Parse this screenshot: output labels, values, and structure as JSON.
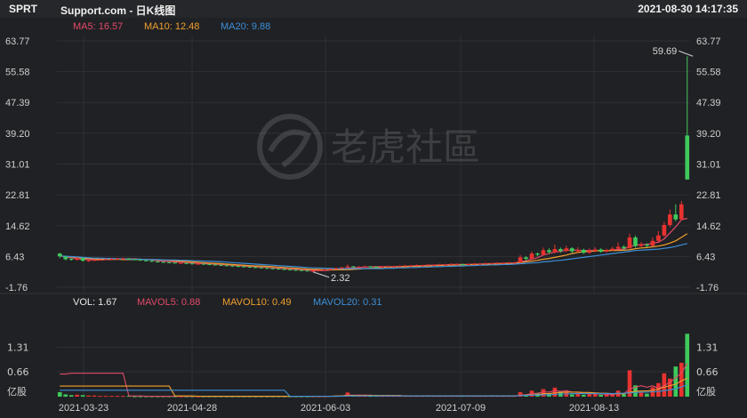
{
  "header": {
    "ticker": "SPRT",
    "title": "Support.com - 日K线图",
    "datetime": "2021-08-30 14:17:35"
  },
  "legend": {
    "ma5": "MA5: 16.57",
    "ma10": "MA10: 12.48",
    "ma20": "MA20: 9.88",
    "vol": "VOL: 1.67",
    "mavol5": "MAVOL5: 0.88",
    "mavol10": "MAVOL10: 0.49",
    "mavol20": "MAVOL20: 0.31"
  },
  "watermark": "老虎社區",
  "colors": {
    "up": "#e8322f",
    "down": "#3ec95c",
    "ma5": "#e04a6a",
    "ma10": "#f0a030",
    "ma20": "#3c8fd8",
    "background": "#202124"
  },
  "chart_data": {
    "type": "candlestick",
    "price_ticks": [
      "63.77",
      "55.58",
      "47.39",
      "39.20",
      "31.01",
      "22.81",
      "14.62",
      "6.43",
      "-1.76"
    ],
    "price_ylim": [
      -1.76,
      63.77
    ],
    "volume_ticks": [
      "1.31",
      "0.66",
      "亿股"
    ],
    "volume_ylim": [
      0,
      1.7
    ],
    "x_ticks": [
      "2021-03-23",
      "2021-04-28",
      "2021-06-03",
      "2021-07-09",
      "2021-08-13"
    ],
    "annotations": [
      {
        "text": "59.69",
        "value": 59.69,
        "index": 110
      },
      {
        "text": "2.32",
        "value": 2.32,
        "index": 44
      }
    ],
    "candles": [
      [
        7.2,
        6.5,
        7.4,
        6.0
      ],
      [
        6.4,
        5.7,
        6.6,
        5.4
      ],
      [
        5.8,
        5.6,
        6.0,
        5.3
      ],
      [
        5.5,
        6.0,
        6.2,
        5.4
      ],
      [
        6.0,
        5.3,
        6.1,
        5.1
      ],
      [
        5.3,
        5.4,
        5.6,
        5.0
      ],
      [
        5.4,
        5.5,
        5.7,
        5.2
      ],
      [
        5.5,
        5.6,
        5.8,
        5.3
      ],
      [
        5.6,
        5.7,
        5.9,
        5.4
      ],
      [
        5.7,
        5.8,
        6.0,
        5.5
      ],
      [
        5.8,
        5.9,
        6.1,
        5.6
      ],
      [
        5.9,
        5.9,
        6.1,
        5.7
      ],
      [
        5.9,
        5.7,
        6.0,
        5.5
      ],
      [
        5.7,
        5.6,
        5.8,
        5.4
      ],
      [
        5.6,
        5.4,
        5.7,
        5.2
      ],
      [
        5.4,
        5.3,
        5.5,
        5.1
      ],
      [
        5.3,
        5.1,
        5.4,
        4.9
      ],
      [
        5.1,
        5.0,
        5.2,
        4.8
      ],
      [
        5.0,
        4.9,
        5.1,
        4.7
      ],
      [
        4.9,
        4.8,
        5.0,
        4.6
      ],
      [
        4.8,
        4.7,
        4.9,
        4.5
      ],
      [
        4.7,
        4.7,
        4.8,
        4.5
      ],
      [
        4.7,
        4.6,
        4.8,
        4.4
      ],
      [
        4.6,
        4.5,
        4.7,
        4.3
      ],
      [
        4.5,
        4.5,
        4.6,
        4.3
      ],
      [
        4.5,
        4.4,
        4.6,
        4.2
      ],
      [
        4.4,
        4.3,
        4.5,
        4.1
      ],
      [
        4.3,
        4.2,
        4.4,
        4.0
      ],
      [
        4.2,
        4.1,
        4.3,
        3.9
      ],
      [
        4.1,
        4.0,
        4.2,
        3.8
      ],
      [
        4.0,
        3.9,
        4.1,
        3.7
      ],
      [
        3.9,
        3.8,
        4.0,
        3.6
      ],
      [
        3.8,
        3.7,
        3.9,
        3.5
      ],
      [
        3.7,
        3.6,
        3.8,
        3.4
      ],
      [
        3.6,
        3.5,
        3.7,
        3.3
      ],
      [
        3.5,
        3.4,
        3.6,
        3.2
      ],
      [
        3.4,
        3.3,
        3.5,
        3.1
      ],
      [
        3.3,
        3.2,
        3.4,
        3.0
      ],
      [
        3.2,
        3.1,
        3.3,
        2.9
      ],
      [
        3.1,
        3.0,
        3.2,
        2.8
      ],
      [
        3.0,
        2.9,
        3.1,
        2.7
      ],
      [
        2.9,
        2.8,
        3.0,
        2.6
      ],
      [
        2.8,
        2.7,
        2.9,
        2.5
      ],
      [
        2.7,
        2.6,
        2.8,
        2.4
      ],
      [
        2.6,
        2.6,
        2.8,
        2.32
      ],
      [
        2.6,
        2.8,
        2.9,
        2.5
      ],
      [
        2.8,
        3.0,
        3.1,
        2.7
      ],
      [
        3.0,
        3.1,
        3.3,
        2.9
      ],
      [
        3.1,
        3.3,
        3.5,
        3.0
      ],
      [
        3.3,
        3.5,
        3.7,
        3.2
      ],
      [
        3.5,
        3.8,
        4.3,
        3.4
      ],
      [
        3.8,
        3.6,
        3.9,
        3.4
      ],
      [
        3.6,
        3.7,
        3.9,
        3.5
      ],
      [
        3.7,
        3.8,
        4.0,
        3.6
      ],
      [
        3.8,
        3.7,
        3.9,
        3.5
      ],
      [
        3.7,
        3.6,
        3.8,
        3.4
      ],
      [
        3.6,
        3.7,
        3.9,
        3.5
      ],
      [
        3.7,
        3.8,
        4.0,
        3.6
      ],
      [
        3.8,
        3.8,
        4.0,
        3.6
      ],
      [
        3.8,
        3.9,
        4.1,
        3.7
      ],
      [
        3.9,
        4.0,
        4.2,
        3.8
      ],
      [
        4.0,
        4.0,
        4.2,
        3.8
      ],
      [
        4.0,
        4.1,
        4.3,
        3.9
      ],
      [
        4.1,
        4.1,
        4.3,
        3.9
      ],
      [
        4.1,
        4.2,
        4.4,
        4.0
      ],
      [
        4.2,
        4.2,
        4.4,
        4.0
      ],
      [
        4.2,
        4.3,
        4.5,
        4.1
      ],
      [
        4.3,
        4.3,
        4.5,
        4.1
      ],
      [
        4.3,
        4.4,
        4.6,
        4.2
      ],
      [
        4.4,
        4.4,
        4.6,
        4.2
      ],
      [
        4.4,
        4.3,
        4.5,
        4.1
      ],
      [
        4.3,
        4.4,
        4.6,
        4.2
      ],
      [
        4.4,
        4.5,
        4.7,
        4.3
      ],
      [
        4.5,
        4.5,
        4.7,
        4.3
      ],
      [
        4.5,
        4.6,
        4.8,
        4.4
      ],
      [
        4.6,
        4.6,
        4.8,
        4.4
      ],
      [
        4.6,
        4.7,
        4.9,
        4.5
      ],
      [
        4.7,
        4.7,
        4.9,
        4.5
      ],
      [
        4.7,
        4.8,
        5.0,
        4.6
      ],
      [
        4.8,
        4.8,
        5.0,
        4.6
      ],
      [
        4.8,
        6.2,
        6.8,
        4.7
      ],
      [
        6.2,
        5.8,
        6.5,
        5.3
      ],
      [
        5.8,
        7.2,
        7.8,
        5.6
      ],
      [
        7.2,
        6.9,
        7.5,
        6.4
      ],
      [
        6.9,
        8.1,
        8.8,
        6.7
      ],
      [
        8.1,
        7.6,
        8.6,
        7.2
      ],
      [
        7.6,
        8.4,
        9.6,
        7.3
      ],
      [
        8.4,
        7.9,
        8.8,
        7.4
      ],
      [
        7.9,
        8.6,
        9.3,
        7.6
      ],
      [
        8.6,
        7.8,
        8.9,
        7.3
      ],
      [
        7.8,
        8.2,
        8.9,
        7.5
      ],
      [
        8.2,
        7.4,
        8.5,
        7.1
      ],
      [
        7.4,
        7.9,
        8.6,
        7.2
      ],
      [
        7.9,
        8.3,
        8.9,
        7.6
      ],
      [
        8.3,
        7.7,
        8.6,
        7.4
      ],
      [
        7.7,
        8.1,
        8.5,
        7.5
      ],
      [
        8.1,
        8.5,
        9.0,
        7.9
      ],
      [
        8.5,
        9.0,
        10.2,
        8.2
      ],
      [
        9.0,
        8.6,
        9.4,
        8.2
      ],
      [
        8.6,
        11.5,
        12.5,
        8.5
      ],
      [
        11.5,
        9.2,
        12.0,
        8.8
      ],
      [
        9.2,
        9.6,
        10.3,
        9.0
      ],
      [
        9.6,
        9.3,
        10.0,
        8.9
      ],
      [
        9.3,
        10.6,
        11.5,
        9.1
      ],
      [
        10.6,
        12.0,
        13.2,
        10.4
      ],
      [
        12.0,
        14.8,
        15.6,
        11.6
      ],
      [
        14.8,
        17.6,
        18.9,
        14.2
      ],
      [
        17.6,
        16.3,
        20.3,
        15.8
      ],
      [
        16.3,
        20.3,
        21.2,
        16.0
      ],
      [
        38.6,
        26.9,
        59.69,
        26.9
      ]
    ],
    "ma5": [
      6.6,
      6.3,
      6.1,
      5.9,
      5.7,
      5.6,
      5.5,
      5.5,
      5.6,
      5.6,
      5.7,
      5.8,
      5.8,
      5.8,
      5.7,
      5.6,
      5.5,
      5.3,
      5.2,
      5.1,
      5.0,
      4.9,
      4.8,
      4.7,
      4.6,
      4.5,
      4.5,
      4.4,
      4.3,
      4.2,
      4.1,
      4.0,
      3.9,
      3.8,
      3.7,
      3.6,
      3.5,
      3.4,
      3.3,
      3.2,
      3.1,
      3.0,
      2.9,
      2.8,
      2.7,
      2.7,
      2.7,
      2.8,
      2.9,
      3.1,
      3.3,
      3.4,
      3.5,
      3.6,
      3.7,
      3.7,
      3.7,
      3.7,
      3.7,
      3.8,
      3.8,
      3.9,
      4.0,
      4.0,
      4.1,
      4.1,
      4.2,
      4.2,
      4.3,
      4.3,
      4.3,
      4.3,
      4.4,
      4.4,
      4.5,
      4.5,
      4.6,
      4.6,
      4.7,
      4.7,
      5.0,
      5.3,
      5.7,
      6.1,
      6.8,
      7.2,
      7.6,
      7.8,
      8.1,
      8.1,
      8.1,
      8.0,
      8.0,
      8.0,
      7.9,
      7.9,
      8.1,
      8.3,
      8.4,
      9.1,
      9.4,
      9.6,
      9.6,
      10.0,
      10.2,
      11.1,
      12.7,
      14.3,
      16.2,
      16.57
    ],
    "ma10": [
      6.6,
      6.4,
      6.3,
      6.2,
      6.0,
      5.9,
      5.8,
      5.7,
      5.7,
      5.7,
      5.7,
      5.6,
      5.6,
      5.6,
      5.6,
      5.6,
      5.6,
      5.5,
      5.5,
      5.4,
      5.3,
      5.2,
      5.1,
      5.0,
      4.9,
      4.8,
      4.7,
      4.6,
      4.5,
      4.4,
      4.3,
      4.2,
      4.1,
      4.0,
      3.9,
      3.9,
      3.8,
      3.7,
      3.6,
      3.5,
      3.4,
      3.3,
      3.2,
      3.1,
      3.0,
      3.0,
      2.9,
      2.9,
      2.9,
      2.9,
      2.9,
      3.0,
      3.1,
      3.2,
      3.3,
      3.4,
      3.5,
      3.6,
      3.6,
      3.7,
      3.7,
      3.8,
      3.8,
      3.9,
      3.9,
      4.0,
      4.0,
      4.1,
      4.1,
      4.2,
      4.2,
      4.2,
      4.3,
      4.3,
      4.4,
      4.4,
      4.4,
      4.5,
      4.5,
      4.6,
      4.8,
      5.0,
      5.2,
      5.4,
      5.7,
      5.9,
      6.2,
      6.5,
      6.8,
      7.2,
      7.5,
      7.7,
      7.8,
      7.9,
      8.0,
      8.0,
      8.0,
      8.0,
      8.1,
      8.2,
      8.5,
      8.7,
      8.8,
      9.0,
      9.2,
      9.5,
      10.0,
      10.6,
      11.5,
      12.48
    ],
    "ma20": [
      6.6,
      6.5,
      6.4,
      6.3,
      6.2,
      6.1,
      6.0,
      6.0,
      5.9,
      5.9,
      5.8,
      5.8,
      5.7,
      5.7,
      5.7,
      5.6,
      5.6,
      5.6,
      5.5,
      5.5,
      5.5,
      5.4,
      5.4,
      5.3,
      5.3,
      5.2,
      5.2,
      5.1,
      5.0,
      4.9,
      4.8,
      4.7,
      4.6,
      4.5,
      4.4,
      4.3,
      4.2,
      4.1,
      4.0,
      3.9,
      3.8,
      3.7,
      3.6,
      3.5,
      3.4,
      3.4,
      3.3,
      3.3,
      3.2,
      3.2,
      3.2,
      3.2,
      3.2,
      3.2,
      3.2,
      3.2,
      3.2,
      3.3,
      3.3,
      3.4,
      3.4,
      3.5,
      3.5,
      3.6,
      3.6,
      3.7,
      3.7,
      3.8,
      3.8,
      3.9,
      3.9,
      4.0,
      4.0,
      4.1,
      4.1,
      4.2,
      4.2,
      4.3,
      4.3,
      4.4,
      4.5,
      4.6,
      4.7,
      4.8,
      5.0,
      5.1,
      5.3,
      5.4,
      5.6,
      5.8,
      6.0,
      6.2,
      6.4,
      6.6,
      6.8,
      7.0,
      7.2,
      7.4,
      7.6,
      7.8,
      8.0,
      8.1,
      8.2,
      8.3,
      8.4,
      8.6,
      8.8,
      9.1,
      9.5,
      9.88
    ],
    "volume": [
      0.12,
      0.06,
      0.04,
      0.05,
      0.04,
      0.03,
      0.03,
      0.02,
      0.02,
      0.02,
      0.02,
      0.02,
      0.02,
      0.01,
      0.01,
      0.01,
      0.01,
      0.01,
      0.01,
      0.01,
      0.01,
      0.01,
      0.01,
      0.01,
      0.01,
      0.01,
      0.01,
      0.01,
      0.01,
      0.01,
      0.01,
      0.01,
      0.01,
      0.01,
      0.01,
      0.01,
      0.01,
      0.01,
      0.01,
      0.01,
      0.01,
      0.01,
      0.01,
      0.01,
      0.01,
      0.01,
      0.01,
      0.02,
      0.02,
      0.03,
      0.11,
      0.04,
      0.02,
      0.02,
      0.02,
      0.02,
      0.02,
      0.02,
      0.02,
      0.02,
      0.02,
      0.02,
      0.02,
      0.02,
      0.02,
      0.02,
      0.02,
      0.02,
      0.02,
      0.02,
      0.02,
      0.02,
      0.02,
      0.02,
      0.02,
      0.02,
      0.02,
      0.02,
      0.02,
      0.02,
      0.12,
      0.06,
      0.16,
      0.1,
      0.2,
      0.08,
      0.24,
      0.14,
      0.14,
      0.06,
      0.1,
      0.05,
      0.08,
      0.06,
      0.05,
      0.05,
      0.07,
      0.16,
      0.06,
      0.7,
      0.3,
      0.12,
      0.08,
      0.25,
      0.36,
      0.62,
      0.48,
      0.8,
      0.9,
      1.67
    ],
    "mavol5": [
      0.6,
      0.6,
      0.62,
      0.62,
      0.62,
      0.62,
      0.62,
      0.62,
      0.62,
      0.62,
      0.62,
      0.62,
      0.02,
      0.02,
      0.02,
      0.01,
      0.01,
      0.01,
      0.01,
      0.01,
      0.01,
      0.01,
      0.01,
      0.01,
      0.01,
      0.01,
      0.01,
      0.01,
      0.01,
      0.01,
      0.01,
      0.01,
      0.01,
      0.01,
      0.01,
      0.01,
      0.01,
      0.01,
      0.01,
      0.01,
      0.01,
      0.01,
      0.01,
      0.01,
      0.01,
      0.01,
      0.01,
      0.01,
      0.01,
      0.02,
      0.04,
      0.04,
      0.04,
      0.04,
      0.04,
      0.02,
      0.02,
      0.02,
      0.02,
      0.02,
      0.02,
      0.02,
      0.02,
      0.02,
      0.02,
      0.02,
      0.02,
      0.02,
      0.02,
      0.02,
      0.02,
      0.02,
      0.02,
      0.02,
      0.02,
      0.02,
      0.02,
      0.02,
      0.02,
      0.02,
      0.04,
      0.05,
      0.08,
      0.09,
      0.13,
      0.12,
      0.16,
      0.14,
      0.16,
      0.12,
      0.12,
      0.08,
      0.09,
      0.07,
      0.07,
      0.06,
      0.06,
      0.08,
      0.08,
      0.2,
      0.25,
      0.29,
      0.25,
      0.29,
      0.22,
      0.29,
      0.38,
      0.5,
      0.63,
      0.88
    ],
    "mavol10": [
      0.28,
      0.28,
      0.28,
      0.28,
      0.28,
      0.28,
      0.28,
      0.28,
      0.28,
      0.28,
      0.28,
      0.28,
      0.28,
      0.28,
      0.28,
      0.28,
      0.28,
      0.28,
      0.28,
      0.28,
      0.02,
      0.02,
      0.02,
      0.02,
      0.01,
      0.01,
      0.01,
      0.01,
      0.01,
      0.01,
      0.01,
      0.01,
      0.01,
      0.01,
      0.01,
      0.01,
      0.01,
      0.01,
      0.01,
      0.01,
      0.01,
      0.01,
      0.01,
      0.01,
      0.01,
      0.01,
      0.01,
      0.01,
      0.02,
      0.02,
      0.03,
      0.03,
      0.03,
      0.03,
      0.03,
      0.03,
      0.03,
      0.03,
      0.03,
      0.03,
      0.02,
      0.02,
      0.02,
      0.02,
      0.02,
      0.02,
      0.02,
      0.02,
      0.02,
      0.02,
      0.02,
      0.02,
      0.02,
      0.02,
      0.02,
      0.02,
      0.02,
      0.02,
      0.02,
      0.02,
      0.03,
      0.04,
      0.05,
      0.05,
      0.08,
      0.08,
      0.1,
      0.11,
      0.12,
      0.12,
      0.12,
      0.11,
      0.11,
      0.1,
      0.09,
      0.09,
      0.08,
      0.08,
      0.07,
      0.12,
      0.14,
      0.15,
      0.15,
      0.17,
      0.2,
      0.25,
      0.29,
      0.33,
      0.42,
      0.49
    ],
    "mavol20": [
      0.17,
      0.17,
      0.17,
      0.17,
      0.17,
      0.17,
      0.17,
      0.17,
      0.17,
      0.17,
      0.17,
      0.17,
      0.17,
      0.17,
      0.17,
      0.17,
      0.17,
      0.17,
      0.17,
      0.17,
      0.17,
      0.17,
      0.17,
      0.17,
      0.17,
      0.17,
      0.17,
      0.17,
      0.17,
      0.17,
      0.17,
      0.17,
      0.17,
      0.17,
      0.17,
      0.17,
      0.17,
      0.17,
      0.17,
      0.17,
      0.01,
      0.01,
      0.01,
      0.01,
      0.01,
      0.01,
      0.01,
      0.01,
      0.01,
      0.01,
      0.02,
      0.02,
      0.02,
      0.02,
      0.02,
      0.02,
      0.02,
      0.02,
      0.02,
      0.02,
      0.02,
      0.02,
      0.02,
      0.02,
      0.02,
      0.02,
      0.02,
      0.02,
      0.02,
      0.02,
      0.02,
      0.02,
      0.02,
      0.02,
      0.02,
      0.02,
      0.02,
      0.02,
      0.02,
      0.02,
      0.03,
      0.03,
      0.04,
      0.04,
      0.05,
      0.05,
      0.06,
      0.07,
      0.07,
      0.08,
      0.08,
      0.08,
      0.08,
      0.08,
      0.08,
      0.08,
      0.08,
      0.09,
      0.09,
      0.1,
      0.11,
      0.12,
      0.12,
      0.13,
      0.14,
      0.16,
      0.18,
      0.21,
      0.26,
      0.31
    ]
  }
}
